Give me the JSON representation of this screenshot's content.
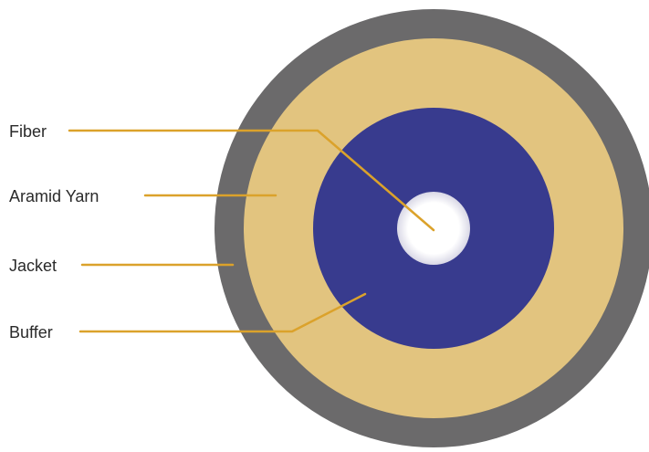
{
  "diagram": {
    "labels": {
      "fiber": "Fiber",
      "aramid_yarn": "Aramid Yarn",
      "jacket": "Jacket",
      "buffer": "Buffer"
    },
    "colors": {
      "jacket": "#6b6a6b",
      "aramid_yarn": "#e2c47f",
      "buffer": "#383b8e",
      "fiber": "#ffffff",
      "leader_line": "#dba22b",
      "label_text": "#2a2a2a"
    }
  }
}
